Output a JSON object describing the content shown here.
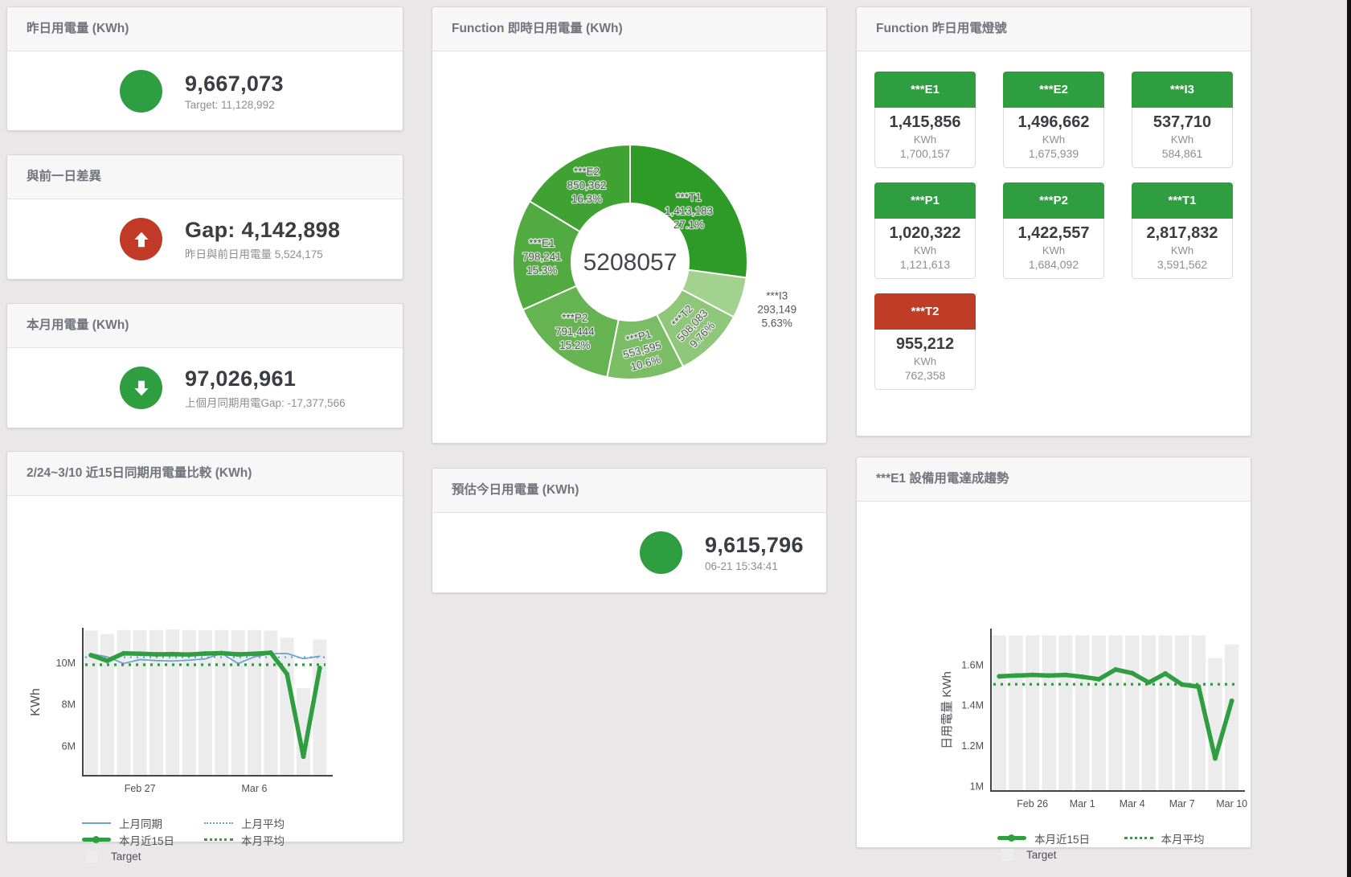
{
  "cards": {
    "yesterday": {
      "title": "昨日用電量 (KWh)",
      "value": "9,667,073",
      "subtitle": "Target: 11,128,992",
      "status_color": "#2f9e41"
    },
    "day_gap": {
      "title": "與前一日差異",
      "value": "Gap: 4,142,898",
      "subtitle": "昨日與前日用電量 5,524,175",
      "status_color": "#c13a27"
    },
    "month": {
      "title": "本月用電量 (KWh)",
      "value": "97,026,961",
      "subtitle": "上個月同期用電Gap: -17,377,566",
      "status_color": "#2f9e41"
    },
    "estimate": {
      "title": "預估今日用電量 (KWh)",
      "value": "9,615,796",
      "subtitle": "06-21 15:34:41",
      "status_color": "#2f9e41"
    },
    "realtime_donut": {
      "title": "Function 即時日用電量 (KWh)"
    },
    "compare15": {
      "title": "2/24~3/10 近15日同期用電量比較 (KWh)"
    },
    "lights": {
      "title": "Function 昨日用電燈號",
      "tiles": [
        {
          "name": "***E1",
          "value": "1,415,856",
          "unit": "KWh",
          "target": "1,700,157",
          "status": "green"
        },
        {
          "name": "***E2",
          "value": "1,496,662",
          "unit": "KWh",
          "target": "1,675,939",
          "status": "green"
        },
        {
          "name": "***I3",
          "value": "537,710",
          "unit": "KWh",
          "target": "584,861",
          "status": "green"
        },
        {
          "name": "***P1",
          "value": "1,020,322",
          "unit": "KWh",
          "target": "1,121,613",
          "status": "green"
        },
        {
          "name": "***P2",
          "value": "1,422,557",
          "unit": "KWh",
          "target": "1,684,092",
          "status": "green"
        },
        {
          "name": "***T1",
          "value": "2,817,832",
          "unit": "KWh",
          "target": "3,591,562",
          "status": "green"
        },
        {
          "name": "***T2",
          "value": "955,212",
          "unit": "KWh",
          "target": "762,358",
          "status": "red"
        }
      ]
    },
    "e1_trend": {
      "title": "***E1 設備用電達成趨勢"
    }
  },
  "chart_data": [
    {
      "type": "pie",
      "variant": "donut",
      "title": "Function 即時日用電量 (KWh)",
      "center_label": "5208057",
      "total": 5208057,
      "slices": [
        {
          "name": "***T1",
          "value": 1413183,
          "value_label": "1,413,183",
          "pct_label": "27.1%",
          "color": "#2f9b27",
          "label_r": 97
        },
        {
          "name": "***I3",
          "value": 293149,
          "value_label": "293,149",
          "pct_label": "5.63%",
          "color": "#a3d18e",
          "label_outside": true
        },
        {
          "name": "***T2",
          "value": 508083,
          "value_label": "508,083",
          "pct_label": "9.76%",
          "color": "#8ec779",
          "label_rotate": -47
        },
        {
          "name": "***P1",
          "value": 553595,
          "value_label": "553,595",
          "pct_label": "10.6%",
          "color": "#7abd64",
          "label_rotate": -15
        },
        {
          "name": "***P2",
          "value": 791444,
          "value_label": "791,444",
          "pct_label": "15.2%",
          "color": "#65b351"
        },
        {
          "name": "***E1",
          "value": 798241,
          "value_label": "798,241",
          "pct_label": "15.3%",
          "color": "#52ab41"
        },
        {
          "name": "***E2",
          "value": 850362,
          "value_label": "850,362",
          "pct_label": "16.3%",
          "color": "#3fa233"
        }
      ]
    },
    {
      "type": "line",
      "title": "2/24~3/10 近15日同期用電量比較 (KWh)",
      "ylabel": "KWh",
      "ylim": [
        4600000,
        11600000
      ],
      "x_count": 15,
      "yticks": [
        {
          "value": 6000000,
          "label": "6M"
        },
        {
          "value": 8000000,
          "label": "8M"
        },
        {
          "value": 10000000,
          "label": "10M"
        }
      ],
      "xticks": [
        {
          "index": 3,
          "label": "Feb 27"
        },
        {
          "index": 10,
          "label": "Mar 6"
        }
      ],
      "target_bars": {
        "name": "Target",
        "color": "#ececec",
        "values": [
          11550000,
          11380000,
          11570000,
          11560000,
          11570000,
          11600000,
          11570000,
          11560000,
          11570000,
          11560000,
          11570000,
          11550000,
          11200000,
          8770000,
          11120000
        ]
      },
      "series": [
        {
          "name": "上月同期",
          "style": "thin",
          "color": "#68a1ce",
          "values": [
            10430000,
            10280000,
            9960000,
            10150000,
            10100000,
            10080000,
            10120000,
            10180000,
            10450000,
            9960000,
            10280000,
            10430000,
            10440000,
            10190000,
            10310000
          ]
        },
        {
          "name": "上月平均",
          "style": "dotted",
          "color": "#68a1ce",
          "const": 10260000
        },
        {
          "name": "本月平均",
          "style": "dotted-thick",
          "color": "#2f9e41",
          "const": 9900000
        },
        {
          "name": "本月近15日",
          "style": "thick",
          "color": "#2f9e41",
          "values": [
            10360000,
            10090000,
            10450000,
            10430000,
            10400000,
            10410000,
            10390000,
            10440000,
            10460000,
            10400000,
            10430000,
            10480000,
            9450000,
            5480000,
            9740000
          ]
        }
      ],
      "legend": [
        "上月同期",
        "上月平均",
        "本月近15日",
        "本月平均",
        "Target"
      ]
    },
    {
      "type": "line",
      "title": "***E1 設備用電達成趨勢",
      "ylabel": "日用電量 KWh",
      "ylim": [
        980000,
        1770000
      ],
      "x_count": 15,
      "yticks": [
        {
          "value": 1000000,
          "label": "1M"
        },
        {
          "value": 1200000,
          "label": "1.2M"
        },
        {
          "value": 1400000,
          "label": "1.4M"
        },
        {
          "value": 1600000,
          "label": "1.6M"
        }
      ],
      "xticks": [
        {
          "index": 2,
          "label": "Feb 26"
        },
        {
          "index": 5,
          "label": "Mar 1"
        },
        {
          "index": 8,
          "label": "Mar 4"
        },
        {
          "index": 11,
          "label": "Mar 7"
        },
        {
          "index": 14,
          "label": "Mar 10"
        }
      ],
      "target_bars": {
        "name": "Target",
        "color": "#ececec",
        "values": [
          1745000,
          1745000,
          1745000,
          1745000,
          1745000,
          1745000,
          1745000,
          1745000,
          1745000,
          1745000,
          1745000,
          1745000,
          1745000,
          1632000,
          1700000
        ]
      },
      "series": [
        {
          "name": "本月平均",
          "style": "dotted-thick",
          "color": "#2f9e41",
          "const": 1503000
        },
        {
          "name": "本月近15日",
          "style": "thick",
          "color": "#2f9e41",
          "values": [
            1542000,
            1546000,
            1549000,
            1546000,
            1549000,
            1540000,
            1528000,
            1576000,
            1558000,
            1512000,
            1556000,
            1502000,
            1491000,
            1137000,
            1421000
          ]
        }
      ],
      "legend": [
        "本月近15日",
        "本月平均",
        "Target"
      ]
    }
  ]
}
